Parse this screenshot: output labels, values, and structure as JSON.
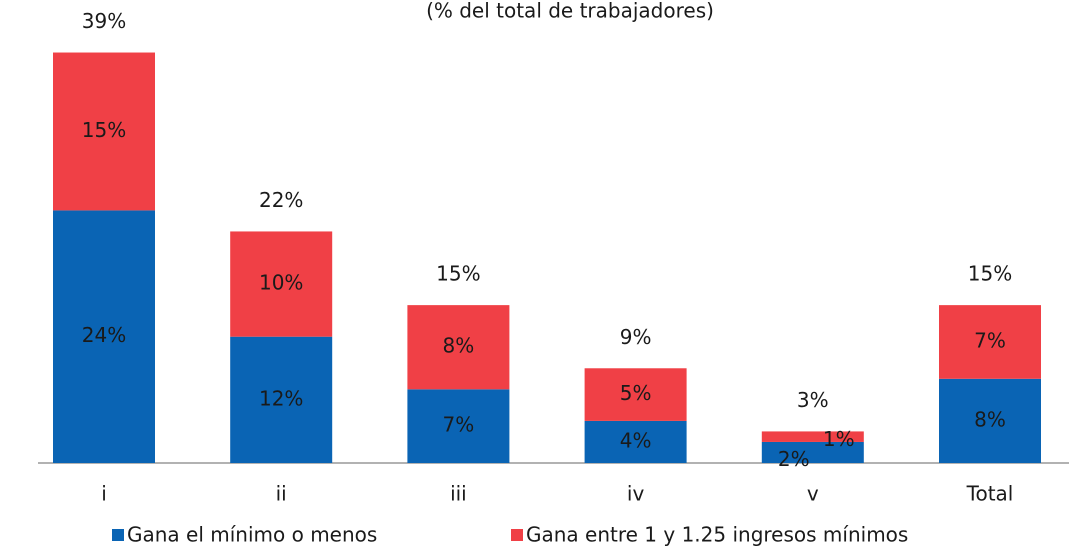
{
  "chart_data": {
    "type": "stacked_bar",
    "subtitle": "(% del total de trabajadores)",
    "categories": [
      "i",
      "ii",
      "iii",
      "iv",
      "v",
      "Total"
    ],
    "series": [
      {
        "name": "Gana el mínimo o menos",
        "color": "#0a64b4",
        "values": [
          24,
          12,
          7,
          4,
          2,
          8
        ],
        "value_labels": [
          "24%",
          "12%",
          "7%",
          "4%",
          "2%",
          "8%"
        ]
      },
      {
        "name": "Gana entre 1 y 1.25 ingresos mínimos",
        "color": "#f04046",
        "values": [
          15,
          10,
          8,
          5,
          1,
          7
        ],
        "value_labels": [
          "15%",
          "10%",
          "8%",
          "5%",
          "1%",
          "7%"
        ]
      }
    ],
    "totals": {
      "values": [
        39,
        22,
        15,
        9,
        3,
        15
      ],
      "value_labels": [
        "39%",
        "22%",
        "15%",
        "9%",
        "3%",
        "15%"
      ]
    },
    "ylim": [
      0,
      40
    ],
    "legend": "bottom"
  }
}
